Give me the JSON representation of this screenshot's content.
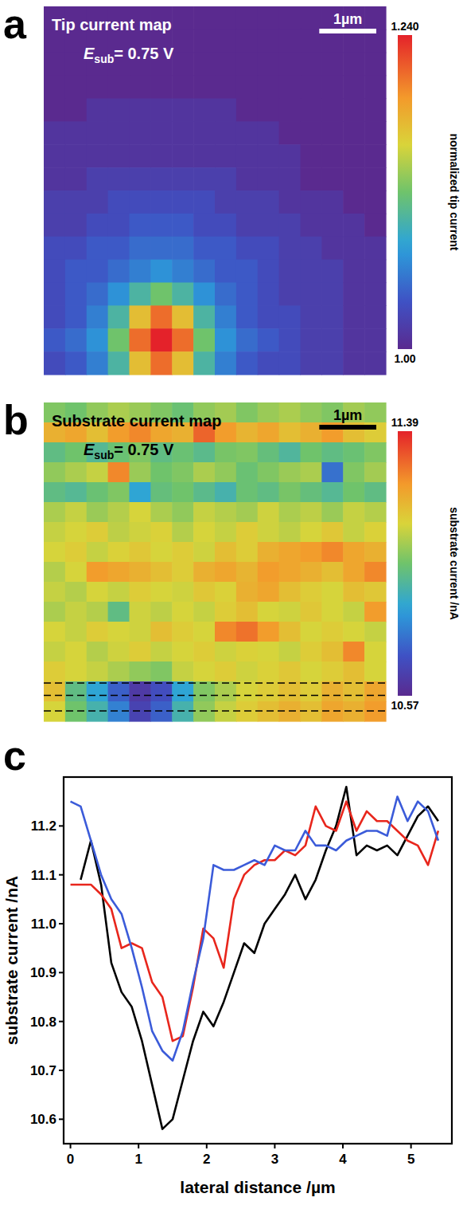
{
  "chart_data": [
    {
      "type": "heatmap",
      "letter": "a",
      "title": "Tip current map",
      "annotation": {
        "symbol": "E",
        "subscript": "sub",
        "text": "= 0.75 V"
      },
      "scale_bar": {
        "value": 1,
        "label": "1µm"
      },
      "xlim": [
        0,
        6
      ],
      "tick_labels": false,
      "colorbar": {
        "label": "normalized tip current",
        "range": [
          1,
          1.24
        ],
        "ticks": [
          {
            "value": 1.24,
            "label": "1.240"
          },
          {
            "value": 1,
            "label": "1.00"
          }
        ]
      },
      "cells": [
        [
          1.0,
          1.0,
          1.0,
          1.0,
          1.0,
          1.0,
          1.0,
          1.0,
          1.0,
          1.0,
          1.0,
          1.0,
          1.0,
          1.0,
          1.0,
          1.0
        ],
        [
          1.0,
          1.0,
          1.0,
          1.0,
          1.0,
          1.0,
          1.0,
          1.0,
          1.0,
          1.0,
          1.0,
          1.0,
          1.0,
          1.0,
          1.0,
          1.0
        ],
        [
          1.0,
          1.0,
          1.0,
          1.0,
          1.0,
          1.0,
          1.0,
          1.0,
          1.0,
          1.0,
          1.0,
          1.0,
          1.0,
          1.0,
          1.0,
          1.0
        ],
        [
          1.0,
          1.0,
          1.0,
          1.0,
          1.0,
          1.0,
          1.0,
          1.0,
          1.0,
          1.0,
          1.0,
          1.0,
          1.0,
          1.0,
          1.0,
          1.0
        ],
        [
          1.0,
          1.0,
          1.01,
          1.01,
          1.01,
          1.01,
          1.01,
          1.01,
          1.01,
          1.0,
          1.0,
          1.0,
          1.0,
          1.0,
          1.0,
          1.0
        ],
        [
          1.01,
          1.01,
          1.01,
          1.01,
          1.01,
          1.01,
          1.01,
          1.01,
          1.01,
          1.01,
          1.01,
          1.0,
          1.0,
          1.0,
          1.0,
          1.0
        ],
        [
          1.01,
          1.01,
          1.01,
          1.01,
          1.01,
          1.01,
          1.01,
          1.01,
          1.01,
          1.01,
          1.01,
          1.01,
          1.0,
          1.0,
          1.0,
          1.0
        ],
        [
          1.01,
          1.01,
          1.02,
          1.02,
          1.02,
          1.02,
          1.02,
          1.02,
          1.02,
          1.01,
          1.01,
          1.01,
          1.0,
          1.0,
          1.0,
          1.0
        ],
        [
          1.02,
          1.02,
          1.02,
          1.03,
          1.03,
          1.03,
          1.03,
          1.03,
          1.02,
          1.02,
          1.02,
          1.01,
          1.01,
          1.01,
          1.0,
          1.0
        ],
        [
          1.02,
          1.02,
          1.03,
          1.03,
          1.04,
          1.04,
          1.04,
          1.03,
          1.03,
          1.02,
          1.02,
          1.02,
          1.01,
          1.01,
          1.01,
          1.0
        ],
        [
          1.03,
          1.03,
          1.04,
          1.04,
          1.05,
          1.05,
          1.05,
          1.04,
          1.04,
          1.03,
          1.03,
          1.02,
          1.02,
          1.01,
          1.01,
          1.01
        ],
        [
          1.03,
          1.04,
          1.04,
          1.05,
          1.06,
          1.07,
          1.06,
          1.05,
          1.04,
          1.04,
          1.03,
          1.02,
          1.02,
          1.02,
          1.01,
          1.01
        ],
        [
          1.03,
          1.04,
          1.05,
          1.07,
          1.1,
          1.12,
          1.1,
          1.07,
          1.05,
          1.04,
          1.03,
          1.02,
          1.02,
          1.02,
          1.01,
          1.01
        ],
        [
          1.03,
          1.04,
          1.06,
          1.1,
          1.17,
          1.21,
          1.17,
          1.1,
          1.06,
          1.04,
          1.03,
          1.03,
          1.02,
          1.02,
          1.01,
          1.01
        ],
        [
          1.04,
          1.05,
          1.07,
          1.12,
          1.21,
          1.24,
          1.21,
          1.12,
          1.07,
          1.05,
          1.04,
          1.03,
          1.02,
          1.02,
          1.01,
          1.01
        ],
        [
          1.03,
          1.04,
          1.06,
          1.1,
          1.17,
          1.21,
          1.17,
          1.1,
          1.06,
          1.04,
          1.03,
          1.03,
          1.02,
          1.02,
          1.01,
          1.01
        ]
      ]
    },
    {
      "type": "heatmap",
      "letter": "b",
      "title": "Substrate current map",
      "annotation": {
        "symbol": "E",
        "subscript": "sub",
        "text": "= 0.75 V"
      },
      "scale_bar": {
        "value": 1,
        "label": "1µm"
      },
      "xlim": [
        0,
        6
      ],
      "tick_labels": false,
      "colorbar": {
        "label": "substrate current /nA",
        "range": [
          10.57,
          11.39
        ],
        "ticks": [
          11.39,
          10.57
        ]
      },
      "cells": [
        [
          11.0,
          10.98,
          11.02,
          11.05,
          11.03,
          11.0,
          10.97,
          11.02,
          11.04,
          11.0,
          11.03,
          11.05,
          11.02,
          11.0,
          11.04,
          11.02
        ],
        [
          11.18,
          11.2,
          11.15,
          11.22,
          11.25,
          11.2,
          11.18,
          11.3,
          11.22,
          11.17,
          11.2,
          11.15,
          11.18,
          11.22,
          11.15,
          11.12
        ],
        [
          10.95,
          10.98,
          10.93,
          10.97,
          11.0,
          10.95,
          10.97,
          10.94,
          10.99,
          11.0,
          10.96,
          10.92,
          10.98,
          10.95,
          10.97,
          11.0
        ],
        [
          11.02,
          11.05,
          11.08,
          11.25,
          11.03,
          10.98,
          11.0,
          11.05,
          11.02,
          10.97,
          11.0,
          11.03,
          11.05,
          10.75,
          11.0,
          11.04
        ],
        [
          10.95,
          10.93,
          10.97,
          11.0,
          10.85,
          10.96,
          10.98,
          10.94,
          10.9,
          10.97,
          10.95,
          10.99,
          10.96,
          10.93,
          10.98,
          10.95
        ],
        [
          11.05,
          11.08,
          11.03,
          11.06,
          11.1,
          11.05,
          11.02,
          11.08,
          11.06,
          11.04,
          11.09,
          11.05,
          11.07,
          11.03,
          11.08,
          11.06
        ],
        [
          11.08,
          11.1,
          11.12,
          11.07,
          11.09,
          11.11,
          11.06,
          11.1,
          11.08,
          11.12,
          11.09,
          11.07,
          11.1,
          11.13,
          11.08,
          11.11
        ],
        [
          11.1,
          11.12,
          11.08,
          11.11,
          11.13,
          11.1,
          11.12,
          11.09,
          11.15,
          11.12,
          11.18,
          11.2,
          11.22,
          11.25,
          11.2,
          11.18
        ],
        [
          11.06,
          11.1,
          11.22,
          11.2,
          11.18,
          11.15,
          11.12,
          11.18,
          11.2,
          11.17,
          11.22,
          11.2,
          11.18,
          11.15,
          11.2,
          11.25
        ],
        [
          11.08,
          11.06,
          11.1,
          11.08,
          11.12,
          11.1,
          11.09,
          11.13,
          11.11,
          11.18,
          11.2,
          11.15,
          11.12,
          11.1,
          11.15,
          11.13
        ],
        [
          11.05,
          11.08,
          11.06,
          10.95,
          11.09,
          11.07,
          11.1,
          11.08,
          11.12,
          11.15,
          11.1,
          11.09,
          11.13,
          11.1,
          11.08,
          11.22
        ],
        [
          11.1,
          11.08,
          11.12,
          11.1,
          11.09,
          11.15,
          11.12,
          11.1,
          11.25,
          11.28,
          11.22,
          11.15,
          11.1,
          11.12,
          11.1,
          11.08
        ],
        [
          11.08,
          11.1,
          11.06,
          11.09,
          11.12,
          11.08,
          11.1,
          11.12,
          11.09,
          11.11,
          11.1,
          11.08,
          11.12,
          11.15,
          11.25,
          11.1
        ],
        [
          11.12,
          11.1,
          11.08,
          11.05,
          11.02,
          11.0,
          11.08,
          11.1,
          11.12,
          11.09,
          11.11,
          11.13,
          11.1,
          11.12,
          11.15,
          11.1
        ],
        [
          11.15,
          10.95,
          10.85,
          10.72,
          10.62,
          10.68,
          10.85,
          11.0,
          11.05,
          11.1,
          11.12,
          11.15,
          11.12,
          11.18,
          11.15,
          11.2
        ],
        [
          11.1,
          10.98,
          10.9,
          10.78,
          10.65,
          10.72,
          10.9,
          11.02,
          11.08,
          11.12,
          11.15,
          11.18,
          11.15,
          11.2,
          11.18,
          11.22
        ]
      ]
    },
    {
      "type": "line",
      "letter": "c",
      "x_label": "lateral distance /µm",
      "y_label": "substrate current /nA",
      "x": [
        0,
        0.15,
        0.3,
        0.45,
        0.6,
        0.75,
        0.9,
        1.05,
        1.2,
        1.35,
        1.5,
        1.65,
        1.8,
        1.95,
        2.1,
        2.25,
        2.4,
        2.55,
        2.7,
        2.85,
        3.0,
        3.15,
        3.3,
        3.45,
        3.6,
        3.75,
        3.9,
        4.05,
        4.2,
        4.35,
        4.5,
        4.65,
        4.8,
        4.95,
        5.1,
        5.25,
        5.4
      ],
      "xlim": [
        -0.1,
        5.6
      ],
      "ylim": [
        10.55,
        11.3
      ],
      "xticks": [
        0,
        1,
        2,
        3,
        4,
        5
      ],
      "yticks": [
        10.6,
        10.7,
        10.8,
        10.9,
        {
          "value": 11,
          "label": "11.0"
        },
        11.1,
        11.2
      ],
      "series": [
        {
          "color": "#000000",
          "values": [
            null,
            11.09,
            11.17,
            11.08,
            10.92,
            10.86,
            10.83,
            10.76,
            10.67,
            10.58,
            10.6,
            10.68,
            10.76,
            10.82,
            10.79,
            10.84,
            10.9,
            10.96,
            10.94,
            11.0,
            11.03,
            11.06,
            11.1,
            11.05,
            11.09,
            11.15,
            11.2,
            11.28,
            11.14,
            11.16,
            11.15,
            11.16,
            11.14,
            11.18,
            11.22,
            11.24,
            11.21
          ]
        },
        {
          "color": "#e8261c",
          "values": [
            11.08,
            11.08,
            11.08,
            11.06,
            11.03,
            10.95,
            10.96,
            10.95,
            10.88,
            10.85,
            10.76,
            10.77,
            10.87,
            10.99,
            10.97,
            10.91,
            11.05,
            11.1,
            11.12,
            11.13,
            11.13,
            11.15,
            11.14,
            11.16,
            11.24,
            11.2,
            11.19,
            11.25,
            11.19,
            11.23,
            11.21,
            11.21,
            11.19,
            11.17,
            11.16,
            11.12,
            11.19
          ]
        },
        {
          "color": "#3b5bd9",
          "values": [
            11.25,
            11.24,
            11.17,
            11.1,
            11.05,
            11.02,
            10.95,
            10.87,
            10.78,
            10.74,
            10.72,
            10.78,
            10.88,
            10.97,
            11.12,
            11.11,
            11.11,
            11.12,
            11.13,
            11.12,
            11.16,
            11.15,
            11.15,
            11.19,
            11.16,
            11.16,
            11.15,
            11.17,
            11.18,
            11.19,
            11.19,
            11.18,
            11.26,
            11.21,
            11.25,
            11.23,
            11.17
          ]
        }
      ]
    }
  ]
}
